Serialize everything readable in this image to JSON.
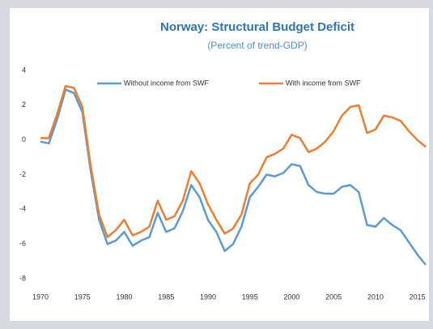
{
  "chart_data": {
    "type": "line",
    "title": "Norway: Structural Budget Deficit",
    "subtitle": "(Percent of trend-GDP)",
    "x": [
      1970,
      1971,
      1972,
      1973,
      1974,
      1975,
      1976,
      1977,
      1978,
      1979,
      1980,
      1981,
      1982,
      1983,
      1984,
      1985,
      1986,
      1987,
      1988,
      1989,
      1990,
      1991,
      1992,
      1993,
      1994,
      1995,
      1996,
      1997,
      1998,
      1999,
      2000,
      2001,
      2002,
      2003,
      2004,
      2005,
      2006,
      2007,
      2008,
      2009,
      2010,
      2011,
      2012,
      2013,
      2014,
      2015,
      2016
    ],
    "series": [
      {
        "name": "Without income from SWF",
        "color": "#5b9bd5",
        "values": [
          -0.1,
          -0.2,
          1.2,
          2.9,
          2.7,
          1.6,
          -1.8,
          -4.6,
          -6.0,
          -5.8,
          -5.3,
          -6.1,
          -5.8,
          -5.6,
          -4.2,
          -5.3,
          -5.1,
          -4.1,
          -2.6,
          -3.3,
          -4.6,
          -5.3,
          -6.4,
          -6.0,
          -5.0,
          -3.3,
          -2.7,
          -2.0,
          -2.1,
          -1.9,
          -1.4,
          -1.5,
          -2.6,
          -3.0,
          -3.1,
          -3.1,
          -2.7,
          -2.6,
          -3.0,
          -4.9,
          -5.0,
          -4.5,
          -4.9,
          -5.2,
          -5.9,
          -6.6,
          -7.2
        ]
      },
      {
        "name": "With income from SWF",
        "color": "#ed7d31",
        "values": [
          0.1,
          0.1,
          1.5,
          3.1,
          3.0,
          1.9,
          -1.5,
          -4.3,
          -5.6,
          -5.2,
          -4.6,
          -5.5,
          -5.3,
          -5.0,
          -3.5,
          -4.6,
          -4.4,
          -3.5,
          -1.8,
          -2.5,
          -3.7,
          -4.6,
          -5.4,
          -5.1,
          -4.3,
          -2.5,
          -2.0,
          -1.0,
          -0.8,
          -0.5,
          0.3,
          0.1,
          -0.7,
          -0.5,
          -0.1,
          0.5,
          1.4,
          1.9,
          2.0,
          0.4,
          0.6,
          1.4,
          1.3,
          1.1,
          0.5,
          0.0,
          -0.4
        ]
      }
    ],
    "xlim": [
      1970,
      2016
    ],
    "xticks": [
      1970,
      1975,
      1980,
      1985,
      1990,
      1995,
      2000,
      2005,
      2010,
      2015
    ],
    "ylim": [
      -8,
      4
    ],
    "yticks": [
      -8,
      -6,
      -4,
      -2,
      0,
      2,
      4
    ],
    "grid": false,
    "legend": "top"
  }
}
